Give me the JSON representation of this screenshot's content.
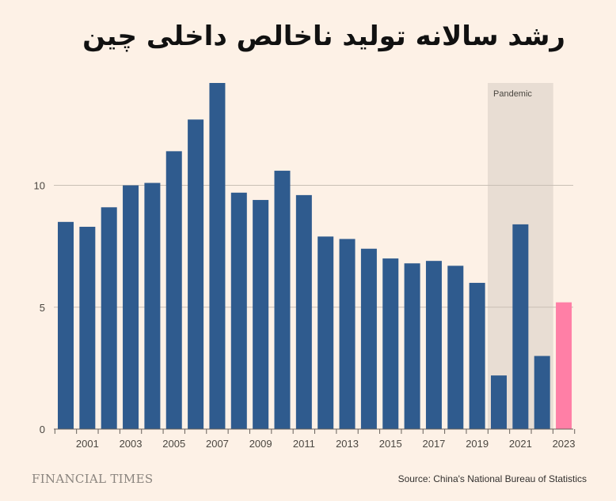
{
  "chart_data": {
    "type": "bar",
    "title": "رشد سالانه تولید ناخالص داخلی چین",
    "categories": [
      "2000",
      "2001",
      "2002",
      "2003",
      "2004",
      "2005",
      "2006",
      "2007",
      "2008",
      "2009",
      "2010",
      "2011",
      "2012",
      "2013",
      "2014",
      "2015",
      "2016",
      "2017",
      "2018",
      "2019",
      "2020",
      "2021",
      "2022",
      "2023"
    ],
    "x_tick_labels": [
      "2001",
      "2003",
      "2005",
      "2007",
      "2009",
      "2011",
      "2013",
      "2015",
      "2017",
      "2019",
      "2021",
      "2023"
    ],
    "values": [
      8.5,
      8.3,
      9.1,
      10.0,
      10.1,
      11.4,
      12.7,
      14.2,
      9.7,
      9.4,
      10.6,
      9.6,
      7.9,
      7.8,
      7.4,
      7.0,
      6.8,
      6.9,
      6.7,
      6.0,
      2.2,
      8.4,
      3.0,
      5.2
    ],
    "highlight_category": "2023",
    "bar_color": "#2f5b8e",
    "highlight_color": "#ff7fa6",
    "ylim": [
      0,
      14.2
    ],
    "y_ticks": [
      0,
      5,
      10
    ],
    "grid": true,
    "annotation": {
      "label": "Pandemic",
      "from": "2020",
      "to": "2022",
      "color": "#e8ddd3"
    }
  },
  "footer": {
    "brand": "FINANCIAL TIMES",
    "source": "Source: China's National Bureau of Statistics"
  }
}
